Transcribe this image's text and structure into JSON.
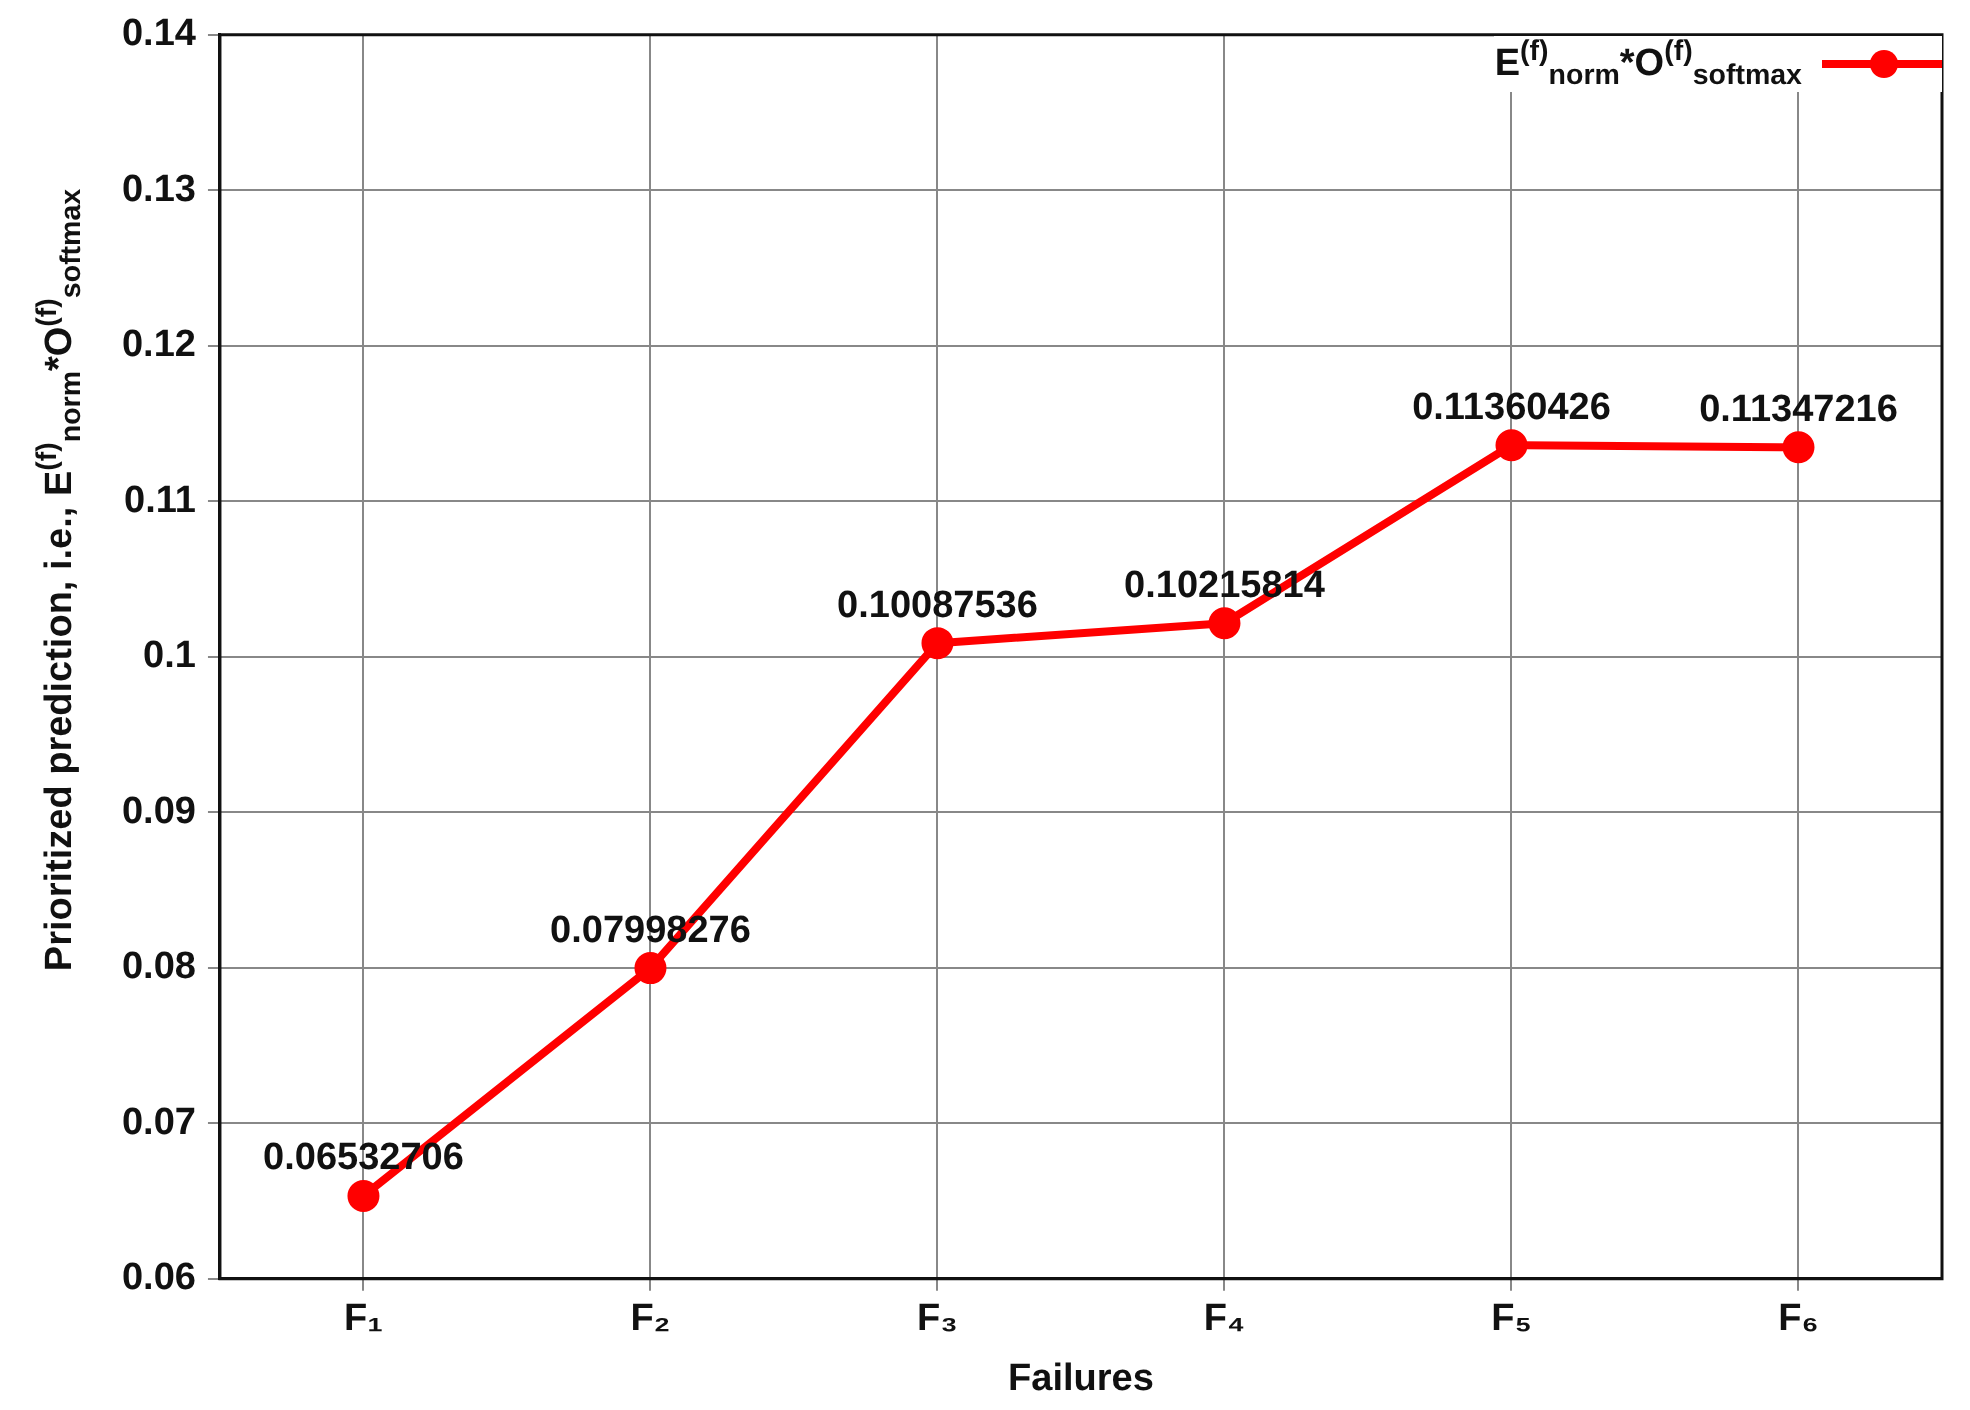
{
  "chart_data": {
    "type": "line",
    "xlabel": "Failures",
    "ylabel": "Prioritized prediction, i.e., E$^{(f)}$$_{norm}$*O$^{(f)}$$_{softmax}$",
    "categories": [
      "F₁",
      "F₂",
      "F₃",
      "F₄",
      "F₅",
      "F₆"
    ],
    "series": [
      {
        "name": "E$^{(f)}$$_{norm}$*O$^{(f)}$$_{softmax}$",
        "color": "#ff0000",
        "values": [
          0.06532706,
          0.07998276,
          0.10087536,
          0.10215814,
          0.11360426,
          0.11347216
        ]
      }
    ],
    "ylim": [
      0.06,
      0.14
    ],
    "yticks": [
      0.06,
      0.07,
      0.08,
      0.09,
      0.1,
      0.11,
      0.12,
      0.13,
      0.14
    ],
    "grid": true,
    "legend": "top right",
    "marker": "circle",
    "line_style": "solid",
    "data_labels": true
  }
}
